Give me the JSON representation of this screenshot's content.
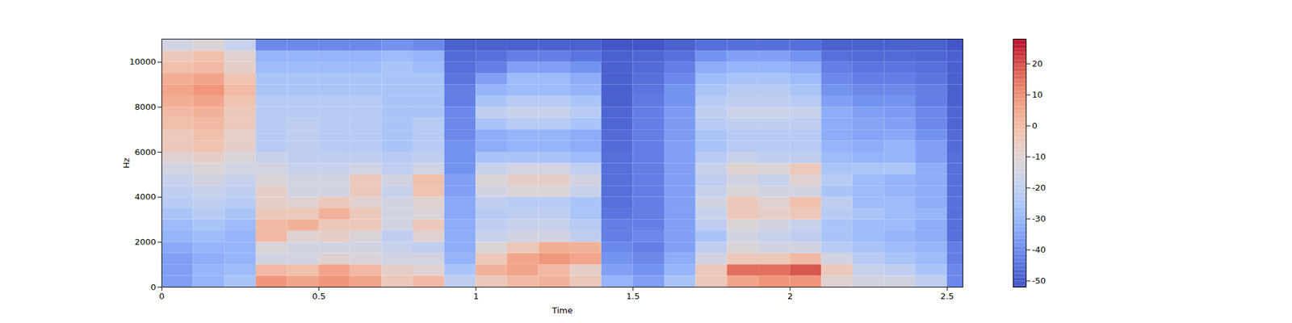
{
  "chart_data": {
    "type": "heatmap",
    "xlabel": "Time",
    "ylabel": "Hz",
    "xlim": [
      0,
      2.55
    ],
    "ylim": [
      0,
      11025
    ],
    "xticks": [
      0,
      0.5,
      1,
      1.5,
      2,
      2.5
    ],
    "yticks": [
      0,
      2000,
      4000,
      6000,
      8000,
      10000
    ],
    "time_edges": [
      0,
      0.1,
      0.2,
      0.3,
      0.4,
      0.5,
      0.6,
      0.7,
      0.8,
      0.9,
      1.0,
      1.1,
      1.2,
      1.3,
      1.4,
      1.5,
      1.6,
      1.7,
      1.8,
      1.9,
      2.0,
      2.1,
      2.2,
      2.3,
      2.4,
      2.5,
      2.55
    ],
    "freq_edges": [
      0,
      500,
      1000,
      1500,
      2000,
      2500,
      3000,
      3500,
      4000,
      4500,
      5000,
      5500,
      6000,
      6500,
      7000,
      7500,
      8000,
      8500,
      9000,
      9500,
      10000,
      10500,
      11025
    ],
    "cells": [
      [
        -35,
        -30,
        -25,
        8,
        5,
        8,
        5,
        -5,
        0,
        -20,
        -5,
        0,
        2,
        -5,
        -30,
        -35,
        -25,
        -5,
        5,
        8,
        8,
        -10,
        -15,
        -15,
        -20,
        -40
      ],
      [
        -35,
        -30,
        -28,
        0,
        -2,
        5,
        0,
        -8,
        -10,
        -25,
        2,
        5,
        0,
        -8,
        -35,
        -38,
        -30,
        -5,
        15,
        15,
        18,
        -5,
        -18,
        -20,
        -25,
        -40
      ],
      [
        -35,
        -32,
        -30,
        -15,
        -15,
        -10,
        -12,
        -15,
        -15,
        -30,
        -5,
        5,
        8,
        5,
        -38,
        -40,
        -32,
        -15,
        -5,
        -5,
        0,
        -15,
        -22,
        -25,
        -28,
        -42
      ],
      [
        -33,
        -30,
        -30,
        -12,
        -15,
        -15,
        -15,
        -18,
        -20,
        -32,
        -12,
        -5,
        3,
        2,
        -40,
        -42,
        -35,
        -20,
        -12,
        -15,
        -15,
        -22,
        -25,
        -28,
        -30,
        -42
      ],
      [
        -30,
        -28,
        -30,
        0,
        -10,
        -8,
        -12,
        -20,
        -10,
        -32,
        -18,
        -15,
        -15,
        -20,
        -42,
        -40,
        -35,
        -25,
        -15,
        -18,
        -20,
        -25,
        -28,
        -30,
        -32,
        -45
      ],
      [
        -28,
        -25,
        -28,
        0,
        2,
        -5,
        -5,
        -15,
        -5,
        -32,
        -20,
        -18,
        -18,
        -22,
        -42,
        -42,
        -35,
        -20,
        -12,
        -15,
        -18,
        -25,
        -28,
        -28,
        -32,
        -45
      ],
      [
        -25,
        -22,
        -25,
        -5,
        -5,
        2,
        -5,
        -15,
        -12,
        -33,
        -22,
        -20,
        -20,
        -25,
        -44,
        -42,
        -35,
        -18,
        -5,
        -8,
        -5,
        -22,
        -25,
        -28,
        -30,
        -45
      ],
      [
        -22,
        -20,
        -22,
        -8,
        -10,
        -5,
        -10,
        -15,
        -10,
        -33,
        -20,
        -22,
        -22,
        -25,
        -45,
        -42,
        -35,
        -15,
        -5,
        -10,
        -2,
        -20,
        -28,
        -28,
        -32,
        -45
      ],
      [
        -20,
        -18,
        -20,
        -8,
        -15,
        -15,
        -5,
        -18,
        -3,
        -35,
        -15,
        -12,
        -12,
        -18,
        -45,
        -42,
        -35,
        -18,
        -12,
        -15,
        -15,
        -25,
        -28,
        -30,
        -32,
        -45
      ],
      [
        -18,
        -15,
        -18,
        -12,
        -15,
        -15,
        -5,
        -15,
        -2,
        -35,
        -12,
        -8,
        -8,
        -15,
        -45,
        -42,
        -35,
        -20,
        -15,
        -18,
        -10,
        -22,
        -28,
        -30,
        -32,
        -45
      ],
      [
        -15,
        -12,
        -15,
        -15,
        -18,
        -18,
        -15,
        -20,
        -15,
        -38,
        -18,
        -15,
        -15,
        -20,
        -45,
        -42,
        -35,
        -18,
        -10,
        -12,
        -5,
        -25,
        -25,
        -25,
        -32,
        -45
      ],
      [
        -10,
        -8,
        -12,
        -18,
        -20,
        -20,
        -20,
        -22,
        -20,
        -38,
        -25,
        -25,
        -25,
        -28,
        -45,
        -42,
        -35,
        -22,
        -18,
        -20,
        -20,
        -28,
        -30,
        -30,
        -35,
        -45
      ],
      [
        -5,
        -3,
        -8,
        -22,
        -20,
        -22,
        -22,
        -25,
        -22,
        -38,
        -32,
        -30,
        -30,
        -32,
        -46,
        -42,
        -35,
        -25,
        -22,
        -22,
        -22,
        -30,
        -32,
        -30,
        -35,
        -46
      ],
      [
        -5,
        -2,
        -8,
        -22,
        -20,
        -22,
        -22,
        -25,
        -22,
        -40,
        -32,
        -30,
        -30,
        -32,
        -46,
        -42,
        -36,
        -25,
        -22,
        -22,
        -22,
        -32,
        -34,
        -33,
        -38,
        -46
      ],
      [
        -2,
        0,
        -5,
        -22,
        -20,
        -22,
        -22,
        -25,
        -22,
        -40,
        -25,
        -22,
        -22,
        -25,
        -47,
        -42,
        -36,
        -22,
        -20,
        -20,
        -20,
        -32,
        -34,
        -35,
        -40,
        -47
      ],
      [
        0,
        2,
        -5,
        -22,
        -22,
        -22,
        -22,
        -25,
        -25,
        -40,
        -20,
        -18,
        -18,
        -22,
        -47,
        -42,
        -36,
        -20,
        -16,
        -16,
        -18,
        -32,
        -35,
        -36,
        -40,
        -47
      ],
      [
        3,
        5,
        -3,
        -22,
        -22,
        -22,
        -22,
        -25,
        -25,
        -42,
        -25,
        -22,
        -22,
        -25,
        -48,
        -43,
        -38,
        -22,
        -20,
        -20,
        -22,
        -35,
        -38,
        -38,
        -42,
        -48
      ],
      [
        5,
        8,
        0,
        -25,
        -25,
        -25,
        -25,
        -25,
        -25,
        -42,
        -30,
        -28,
        -28,
        -30,
        -48,
        -44,
        -38,
        -25,
        -22,
        -22,
        -25,
        -38,
        -40,
        -40,
        -42,
        -48
      ],
      [
        3,
        5,
        -3,
        -25,
        -25,
        -25,
        -25,
        -25,
        -25,
        -44,
        -35,
        -28,
        -28,
        -32,
        -48,
        -45,
        -40,
        -28,
        -25,
        -25,
        -28,
        -40,
        -42,
        -42,
        -44,
        -48
      ],
      [
        -2,
        0,
        -8,
        -28,
        -28,
        -28,
        -28,
        -25,
        -28,
        -45,
        -42,
        -35,
        -35,
        -38,
        -48,
        -46,
        -42,
        -32,
        -30,
        -30,
        -32,
        -42,
        -44,
        -44,
        -45,
        -48
      ],
      [
        -5,
        -2,
        -10,
        -30,
        -30,
        -30,
        -30,
        -28,
        -30,
        -46,
        -45,
        -42,
        -42,
        -44,
        -48,
        -47,
        -45,
        -38,
        -35,
        -35,
        -38,
        -45,
        -46,
        -46,
        -47,
        -48
      ],
      [
        -15,
        -12,
        -18,
        -40,
        -40,
        -40,
        -40,
        -38,
        -40,
        -48,
        -48,
        -48,
        -48,
        -48,
        -50,
        -50,
        -48,
        -45,
        -45,
        -45,
        -45,
        -48,
        -48,
        -48,
        -48,
        -50
      ]
    ],
    "colorbar": {
      "range": [
        -52,
        28
      ],
      "ticks": [
        -50,
        -40,
        -30,
        -20,
        -10,
        0,
        10,
        20
      ]
    }
  }
}
